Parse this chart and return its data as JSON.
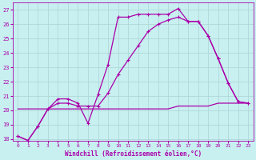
{
  "xlabel": "Windchill (Refroidissement éolien,°C)",
  "background_color": "#c8f0f0",
  "line_color": "#aa00aa",
  "grid_color": "#b0d8d8",
  "ylim": [
    17.9,
    27.5
  ],
  "xlim": [
    -0.5,
    23.5
  ],
  "yticks": [
    18,
    19,
    20,
    21,
    22,
    23,
    24,
    25,
    26,
    27
  ],
  "xticks": [
    0,
    1,
    2,
    3,
    4,
    5,
    6,
    7,
    8,
    9,
    10,
    11,
    12,
    13,
    14,
    15,
    16,
    17,
    18,
    19,
    20,
    21,
    22,
    23
  ],
  "line1_x": [
    0,
    1,
    2,
    3,
    4,
    5,
    6,
    7,
    8,
    9,
    10,
    11,
    12,
    13,
    14,
    15,
    16,
    17,
    18,
    19,
    20,
    21,
    22,
    23
  ],
  "line1_y": [
    18.2,
    17.9,
    18.9,
    20.1,
    20.8,
    20.8,
    20.5,
    19.1,
    21.1,
    23.2,
    26.5,
    26.5,
    26.7,
    26.7,
    26.7,
    26.7,
    27.1,
    26.2,
    26.2,
    25.2,
    23.6,
    21.9,
    20.6,
    20.5
  ],
  "line2_x": [
    0,
    1,
    2,
    3,
    4,
    5,
    6,
    7,
    8,
    9,
    10,
    11,
    12,
    13,
    14,
    15,
    16,
    17,
    18,
    19,
    20,
    21,
    22,
    23
  ],
  "line2_y": [
    18.2,
    17.9,
    18.9,
    20.1,
    20.5,
    20.5,
    20.3,
    20.3,
    20.3,
    21.2,
    22.5,
    23.5,
    24.5,
    25.5,
    26.0,
    26.3,
    26.5,
    26.2,
    26.2,
    25.2,
    23.6,
    21.9,
    20.6,
    20.5
  ],
  "line3_x": [
    0,
    1,
    2,
    3,
    4,
    5,
    6,
    7,
    8,
    9,
    10,
    11,
    12,
    13,
    14,
    15,
    16,
    17,
    18,
    19,
    20,
    21,
    22,
    23
  ],
  "line3_y": [
    20.1,
    20.1,
    20.1,
    20.1,
    20.1,
    20.1,
    20.1,
    20.1,
    20.1,
    20.1,
    20.1,
    20.1,
    20.1,
    20.1,
    20.1,
    20.1,
    20.3,
    20.3,
    20.3,
    20.3,
    20.5,
    20.5,
    20.5,
    20.5
  ],
  "markersize": 3.5,
  "linewidth": 0.9
}
